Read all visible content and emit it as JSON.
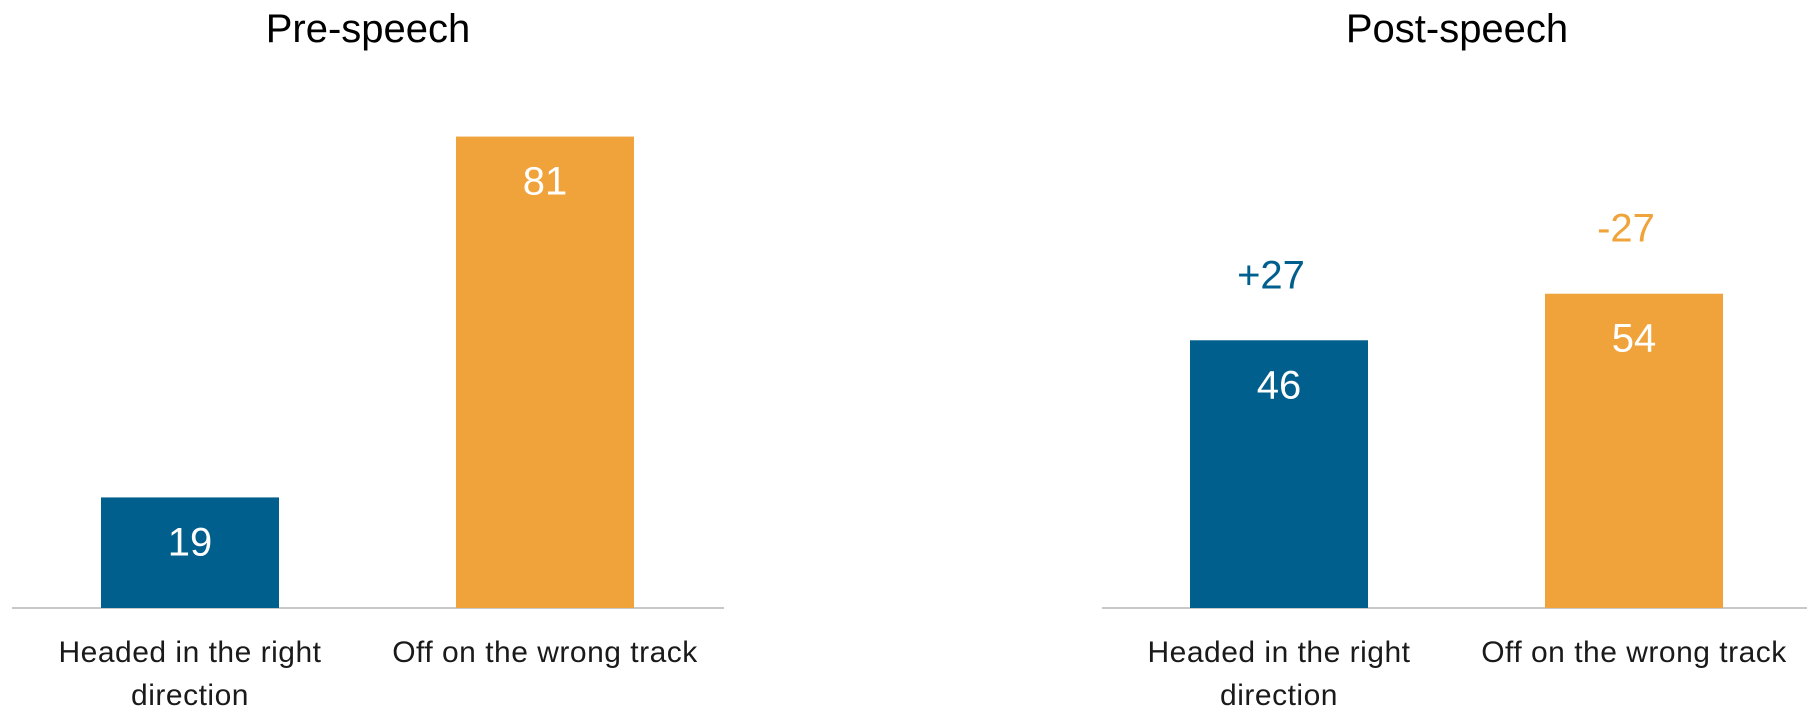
{
  "chart_data": [
    {
      "type": "bar",
      "title": "Pre-speech",
      "xlabel": "",
      "ylabel": "",
      "ylim": [
        0,
        100
      ],
      "grid": false,
      "categories": [
        [
          "Headed in the right",
          "direction"
        ],
        [
          "Off on the wrong track"
        ]
      ],
      "values": [
        19,
        81
      ],
      "data_labels": [
        "19",
        "81"
      ],
      "change_labels": [],
      "colors": [
        "#005F8C",
        "#F0A33A"
      ]
    },
    {
      "type": "bar",
      "title": "Post-speech",
      "xlabel": "",
      "ylabel": "",
      "ylim": [
        0,
        100
      ],
      "grid": false,
      "categories": [
        [
          "Headed in the right",
          "direction"
        ],
        [
          "Off on the wrong track"
        ]
      ],
      "values": [
        46,
        54
      ],
      "data_labels": [
        "46",
        "54"
      ],
      "change_labels": [
        "+27",
        "-27"
      ],
      "colors": [
        "#005F8C",
        "#F0A33A"
      ]
    }
  ],
  "axis_color": "#C8C8C8"
}
